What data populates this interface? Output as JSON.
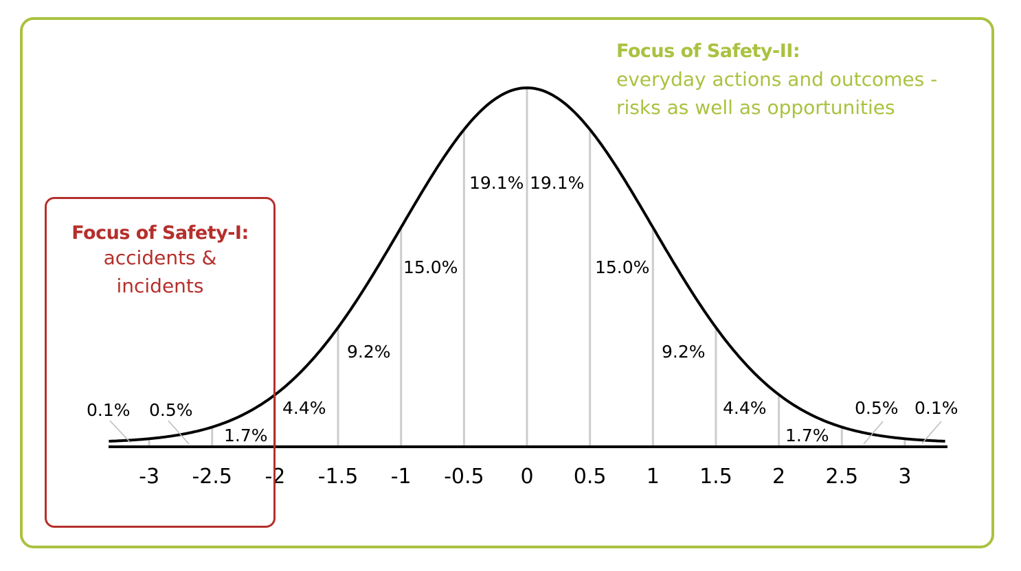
{
  "safety_ii": {
    "title": "Focus of Safety-II:",
    "lines": [
      "everyday actions and outcomes -",
      "risks as well as opportunities"
    ]
  },
  "safety_i": {
    "title": "Focus of Safety-I:",
    "lines": [
      "accidents &",
      "incidents"
    ]
  },
  "colors": {
    "safety_ii": "#a9c23f",
    "safety_i": "#b52f2c",
    "curve": "#000000",
    "gridline": "#cccccc"
  },
  "chart_data": {
    "type": "area",
    "description_curve": "normal distribution",
    "x_ticks": [
      "-3",
      "-2.5",
      "-2",
      "-1.5",
      "-1",
      "-0.5",
      "0",
      "0.5",
      "1",
      "1.5",
      "2",
      "2.5",
      "3"
    ],
    "xlim": [
      -3.3,
      3.3
    ],
    "grid": false,
    "segments": [
      {
        "from": null,
        "to": -3,
        "label": "0.1%"
      },
      {
        "from": -3,
        "to": -2.5,
        "label": "0.5%"
      },
      {
        "from": -2.5,
        "to": -2,
        "label": "1.7%"
      },
      {
        "from": -2,
        "to": -1.5,
        "label": "4.4%"
      },
      {
        "from": -1.5,
        "to": -1,
        "label": "9.2%"
      },
      {
        "from": -1,
        "to": -0.5,
        "label": "15.0%"
      },
      {
        "from": -0.5,
        "to": 0,
        "label": "19.1%"
      },
      {
        "from": 0,
        "to": 0.5,
        "label": "19.1%"
      },
      {
        "from": 0.5,
        "to": 1,
        "label": "15.0%"
      },
      {
        "from": 1,
        "to": 1.5,
        "label": "9.2%"
      },
      {
        "from": 1.5,
        "to": 2,
        "label": "4.4%"
      },
      {
        "from": 2,
        "to": 2.5,
        "label": "1.7%"
      },
      {
        "from": 2.5,
        "to": 3,
        "label": "0.5%"
      },
      {
        "from": 3,
        "to": null,
        "label": "0.1%"
      }
    ]
  }
}
